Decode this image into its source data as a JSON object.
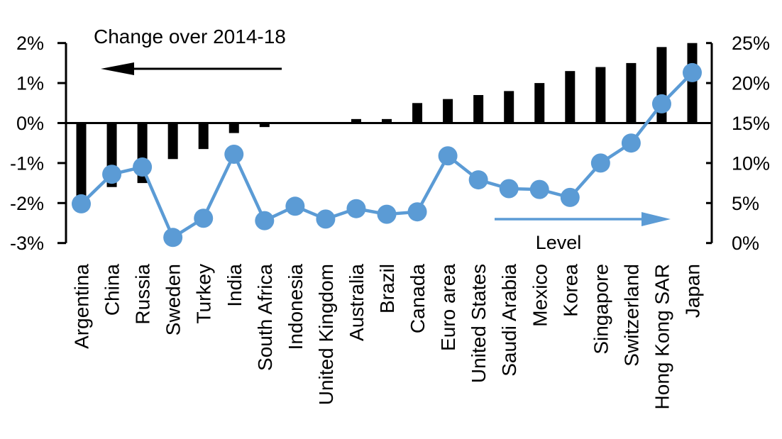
{
  "chart_data": {
    "type": "bar",
    "subtype": "dual-axis-bar-line-combo",
    "title": "",
    "categories": [
      "Argentina",
      "China",
      "Russia",
      "Sweden",
      "Turkey",
      "India",
      "South Africa",
      "Indonesia",
      "United Kingdom",
      "Australia",
      "Brazil",
      "Canada",
      "Euro area",
      "United States",
      "Saudi Arabia",
      "Mexico",
      "Korea",
      "Singapore",
      "Switzerland",
      "Hong Kong SAR",
      "Japan"
    ],
    "series": [
      {
        "name": "Change over 2014-18",
        "type": "bar",
        "axis": "left",
        "color": "#000000",
        "values": [
          -1.9,
          -1.6,
          -1.5,
          -0.9,
          -0.65,
          -0.25,
          -0.1,
          0,
          0,
          0.1,
          0.1,
          0.5,
          0.6,
          0.7,
          0.8,
          1.0,
          1.3,
          1.4,
          1.5,
          1.9,
          2.0
        ]
      },
      {
        "name": "Level",
        "type": "line",
        "axis": "right",
        "color": "#5B9BD5",
        "values": [
          4.9,
          8.6,
          9.5,
          0.7,
          3.1,
          11.1,
          2.8,
          4.6,
          3.0,
          4.3,
          3.6,
          3.9,
          10.9,
          7.9,
          6.8,
          6.7,
          5.7,
          10.0,
          12.5,
          17.4,
          21.3
        ]
      }
    ],
    "left_axis": {
      "unit": "%",
      "min": -3,
      "max": 2,
      "tick_labels": [
        "2%",
        "1%",
        "0%",
        "-1%",
        "-2%",
        "-3%"
      ],
      "tick_values": [
        2,
        1,
        0,
        -1,
        -2,
        -3
      ]
    },
    "right_axis": {
      "unit": "%",
      "min": 0,
      "max": 25,
      "tick_labels": [
        "25%",
        "20%",
        "15%",
        "10%",
        "5%",
        "0%"
      ],
      "tick_values": [
        25,
        20,
        15,
        10,
        5,
        0
      ]
    },
    "grid": false,
    "legend_position": "in-plot-annotations",
    "annotations": [
      {
        "text": "Change over 2014-18",
        "arrow": "left",
        "color": "#000000",
        "position": "top-left"
      },
      {
        "text": "Level",
        "arrow": "right",
        "color": "#5B9BD5",
        "position": "bottom-right"
      }
    ],
    "colors": {
      "bar": "#000000",
      "line": "#5B9BD5",
      "axis": "#000000",
      "background": "#FFFFFF"
    }
  }
}
